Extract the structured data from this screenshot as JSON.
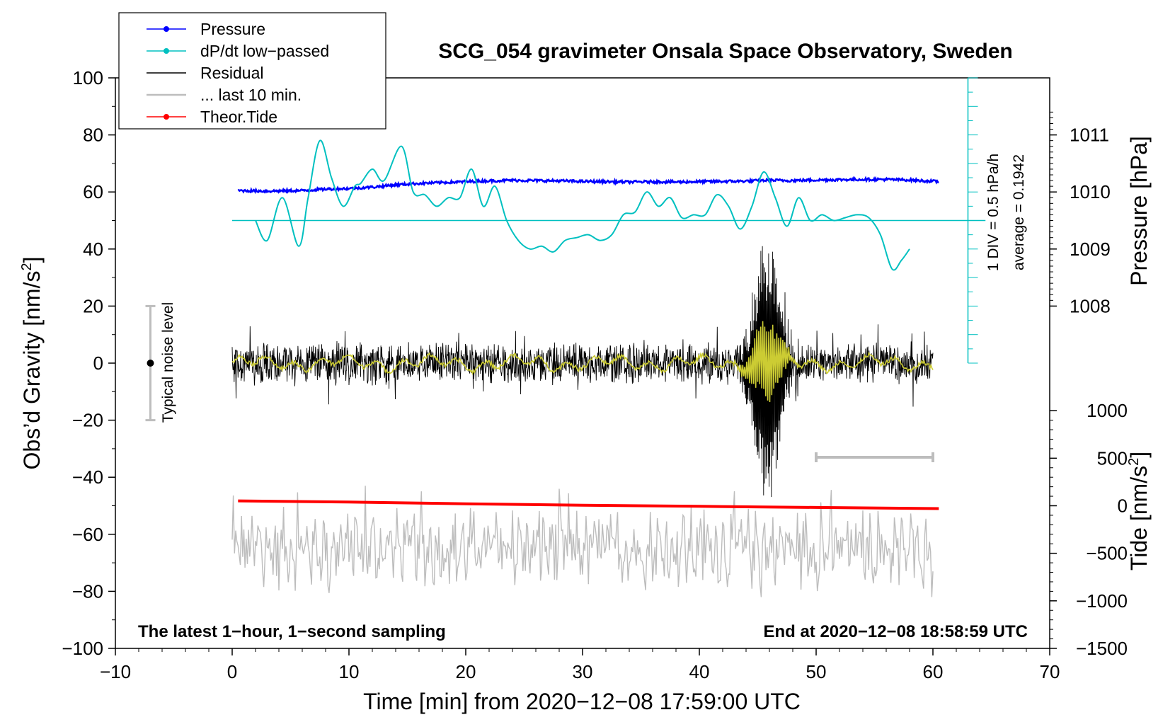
{
  "chart_data": {
    "type": "line",
    "title": "SCG_054 gravimeter Onsala Space Observatory, Sweden",
    "xlabel": "Time [min] from 2020−12−08 17:59:00 UTC",
    "ylabel_left": "Obs’d Gravity [nm/s",
    "ylabel_left_sup": "2",
    "ylabel_left_end": "]",
    "ylabel_right_pressure": "Pressure [hPa]",
    "ylabel_right_tide": "Tide [nm/s",
    "ylabel_right_tide_sup": "2",
    "ylabel_right_tide_end": "]",
    "xlim": [
      -10,
      70
    ],
    "ylim": [
      -100,
      100
    ],
    "x_ticks": [
      -10,
      0,
      10,
      20,
      30,
      40,
      50,
      60,
      70
    ],
    "x_tick_labels": [
      "−10",
      "0",
      "10",
      "20",
      "30",
      "40",
      "50",
      "60",
      "70"
    ],
    "y_ticks": [
      -100,
      -80,
      -60,
      -40,
      -20,
      0,
      20,
      40,
      60,
      80,
      100
    ],
    "y_tick_labels": [
      "−100",
      "−80",
      "−60",
      "−40",
      "−20",
      "0",
      "20",
      "40",
      "60",
      "80",
      "100"
    ],
    "pressure_axis": {
      "ticks": [
        1008,
        1009,
        1010,
        1011
      ],
      "tick_labels": [
        "1008",
        "1009",
        "1010",
        "1011"
      ],
      "gravity_at_1008": 20,
      "gravity_per_hPa": 20
    },
    "tide_axis": {
      "ticks": [
        -1500,
        -1000,
        -500,
        0,
        500,
        1000
      ],
      "tick_labels": [
        "−1500",
        "−1000",
        "−500",
        "0",
        "500",
        "1000"
      ],
      "gravity_at_zero": -50,
      "gravity_per_unit": 0.03333
    },
    "legend": [
      {
        "label": "Pressure",
        "color": "#0000ff",
        "marker": true
      },
      {
        "label": "dP/dt low−passed",
        "color": "#00c0c0",
        "marker": true
      },
      {
        "label": "Residual",
        "color": "#000000",
        "marker": false
      },
      {
        "label": "... last 10 min.",
        "color": "#bdbdbd",
        "marker": false
      },
      {
        "label": "Theor.Tide",
        "color": "#ff0000",
        "marker": true
      }
    ],
    "legend_position": "top-left",
    "annotations": {
      "bottom_left": "The latest 1−hour, 1−second sampling",
      "bottom_right": "End at 2020−12−08 18:58:59 UTC",
      "noise_label": "Typical noise level",
      "noise_range": [
        -20,
        20
      ],
      "noise_x": -7,
      "div_label": "1 DIV = 0.5 hPa/h",
      "average_label": "average = 0.1942",
      "dpdt_axis_x": 63,
      "dpdt_axis_range": [
        0,
        100
      ],
      "dpdt_baseline": 50,
      "dpdt_baseline_range": [
        0,
        64.5
      ],
      "last10_bar": {
        "x": [
          50,
          60
        ],
        "y": -33
      }
    },
    "series": [
      {
        "name": "Pressure",
        "color": "#0000ff",
        "x": [
          0.5,
          3,
          6,
          8,
          10,
          12,
          14,
          16,
          18,
          20,
          22,
          24,
          26,
          28,
          30,
          32,
          34,
          36,
          38,
          40,
          42,
          44,
          46,
          48,
          50,
          52,
          54,
          56,
          58,
          60.5
        ],
        "values": [
          60.5,
          60.3,
          60.5,
          61,
          61.2,
          61.7,
          62.5,
          63,
          63.3,
          63.6,
          63.9,
          64.1,
          64,
          63.9,
          63.7,
          63.6,
          63.5,
          63.6,
          63.5,
          63.6,
          63.7,
          63.8,
          64.1,
          64,
          64.2,
          64.3,
          64.4,
          64.4,
          64.2,
          63.6
        ]
      },
      {
        "name": "dP/dt low-passed",
        "color": "#00c0c0",
        "x": [
          2,
          3,
          4.3,
          5.7,
          6.5,
          7.5,
          8.5,
          9.5,
          10.5,
          11,
          12,
          13,
          14.5,
          15.5,
          16.5,
          17.5,
          18.5,
          19.5,
          20.5,
          21.5,
          22.5,
          23.5,
          24.5,
          25.5,
          26.5,
          27.5,
          28.5,
          29.5,
          30.5,
          31.5,
          32.5,
          33.5,
          34.5,
          35.5,
          36.5,
          37.5,
          38.5,
          39.5,
          40.5,
          41.5,
          42.5,
          43.5,
          44.5,
          45.5,
          46.5,
          47.5,
          48.5,
          49.5,
          50.5,
          51.5,
          52.5,
          53.5,
          54.5,
          55.5,
          56.5,
          57.3,
          58
        ],
        "values": [
          50,
          43,
          58,
          41,
          58,
          78,
          65,
          55,
          62,
          63,
          68,
          64,
          76,
          60,
          59,
          55,
          58,
          58,
          68,
          55,
          62,
          50,
          43,
          40,
          41,
          39,
          43,
          44,
          45,
          43,
          45,
          52,
          53,
          60,
          55,
          58,
          51,
          52,
          52,
          59,
          55,
          47,
          55,
          67,
          58,
          48,
          58,
          50,
          52,
          50,
          51,
          52,
          51,
          45,
          33,
          36,
          40
        ]
      },
      {
        "name": "Residual",
        "color": "#000000",
        "x_range": [
          0,
          60
        ],
        "baseline": 0,
        "noise_amplitude": 5,
        "burst": {
          "center": 45.8,
          "width": 1.6,
          "peak": [
            -47,
            41
          ]
        }
      },
      {
        "name": "Residual smoothed",
        "color": "#cccc33",
        "x_range": [
          0,
          60
        ],
        "baseline": 0
      },
      {
        "name": "... last 10 min.",
        "color": "#bdbdbd",
        "x_range": [
          0,
          60
        ],
        "center": -65,
        "range": [
          -82,
          -43
        ]
      },
      {
        "name": "Theor.Tide",
        "color": "#ff0000",
        "x": [
          0.5,
          10,
          20,
          30,
          40,
          50,
          60.5
        ],
        "values": [
          -48.3,
          -48.7,
          -49.3,
          -49.8,
          -50.2,
          -50.6,
          -51
        ]
      }
    ]
  }
}
